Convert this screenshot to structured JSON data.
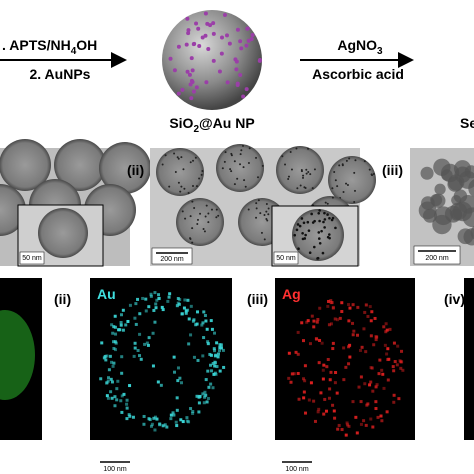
{
  "scheme": {
    "step1": {
      "pre": ". APTS/NH",
      "sub": "4",
      "post": "OH",
      "line2": "2. AuNPs"
    },
    "product1": {
      "pre": "SiO",
      "sub": "2",
      "post": "@Au NP"
    },
    "step2": {
      "pre": "AgNO",
      "sub": "3",
      "line2": "Ascorbic acid"
    },
    "product2": "Se"
  },
  "tem": {
    "panel1": {
      "inset_scale": "50 nm"
    },
    "panel2": {
      "label": "(ii)",
      "scale": "200 nm",
      "inset_scale": "50 nm"
    },
    "panel3": {
      "label": "(iii)",
      "scale": "200 nm"
    }
  },
  "eds": {
    "panel2": {
      "label": "(ii)",
      "element": "Au",
      "scale": "100 nm"
    },
    "panel3": {
      "label": "(iii)",
      "element": "Ag",
      "scale": "100 nm"
    },
    "panel4": {
      "label": "(iv)"
    }
  }
}
